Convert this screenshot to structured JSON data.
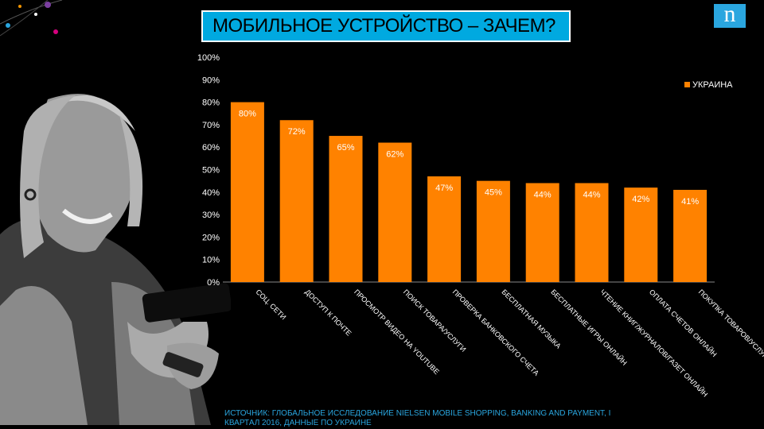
{
  "slide": {
    "title": "МОБИЛЬНОЕ УСТРОЙСТВО – ЗАЧЕМ?",
    "logo": "n",
    "source": "ИСТОЧНИК: ГЛОБАЛЬНОЕ ИССЛЕДОВАНИЕ NIELSEN MOBILE SHOPPING, BANKING AND PAYMENT, I КВАРТАЛ 2016, ДАННЫЕ ПО УКРАИНЕ",
    "photo": "woman-with-smartphone"
  },
  "colors": {
    "accent": "#00a9e0",
    "bar": "#ff8200",
    "background": "#000000"
  },
  "chart_data": {
    "type": "bar",
    "categories": [
      "СОЦ. СЕТИ",
      "ДОСТУП К ПОЧТЕ",
      "ПРОСМОТР ВИДЕО НА YOUTUBE",
      "ПОИСК ТОВАРА/УСЛУГИ",
      "ПРОВЕРКА БАНКОВСКОГО СЧЕТА",
      "БЕСПЛАТНАЯ МУЗЫКА",
      "БЕСПЛАТНЫЕ ИГРЫ ОНЛАЙН",
      "ЧТЕНИЕ КНИГ/ЖУРНАЛОВ/ГАЗЕТ ОНЛАЙН",
      "ОПЛАТА СЧЕТОВ ОНЛАЙН",
      "ПОКУПКА ТОВАРОВ/УСЛУГ"
    ],
    "series": [
      {
        "name": "УКРАИНА",
        "values": [
          80,
          72,
          65,
          62,
          47,
          45,
          44,
          44,
          42,
          41
        ]
      }
    ],
    "data_labels": [
      "80%",
      "72%",
      "65%",
      "62%",
      "47%",
      "45%",
      "44%",
      "44%",
      "42%",
      "41%"
    ],
    "yticks": [
      "0%",
      "10%",
      "20%",
      "30%",
      "40%",
      "50%",
      "60%",
      "70%",
      "80%",
      "90%",
      "100%"
    ],
    "ylim": [
      0,
      100
    ],
    "legend_position": "top-right",
    "grid": false
  }
}
